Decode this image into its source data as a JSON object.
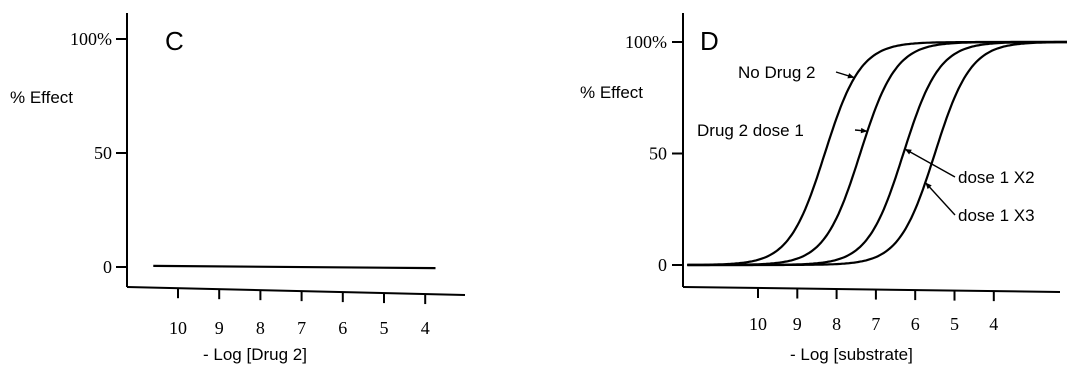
{
  "chart_data": [
    {
      "panel": "C",
      "type": "line",
      "xlabel": "- Log [Drug 2]",
      "ylabel": "% Effect",
      "y_ticks": [
        "0",
        "50",
        "100%"
      ],
      "x_ticks": [
        "10",
        "9",
        "8",
        "7",
        "6",
        "5",
        "4"
      ],
      "xlim": [
        10.8,
        3.6
      ],
      "ylim": [
        0,
        100
      ],
      "series": [
        {
          "x": [
            10.6,
            3.75
          ],
          "y": [
            0.5,
            -0.5
          ]
        }
      ]
    },
    {
      "panel": "D",
      "type": "line",
      "xlabel": "- Log [substrate]",
      "ylabel": "% Effect",
      "y_ticks": [
        "0",
        "50",
        "100%"
      ],
      "x_ticks": [
        "10",
        "9",
        "8",
        "7",
        "6",
        "5",
        "4"
      ],
      "xlim": [
        11.8,
        1.8
      ],
      "ylim": [
        0,
        100
      ],
      "series": [
        {
          "name": "No Drug 2",
          "ec50": 8.3
        },
        {
          "name": "Drug 2 dose 1",
          "ec50": 7.4
        },
        {
          "name": "dose 1 X2",
          "ec50": 6.3
        },
        {
          "name": "dose 1 X3",
          "ec50": 5.5
        }
      ],
      "annotations": [
        "No Drug 2",
        "Drug 2 dose 1",
        "dose 1 X2",
        "dose 1 X3"
      ]
    }
  ]
}
